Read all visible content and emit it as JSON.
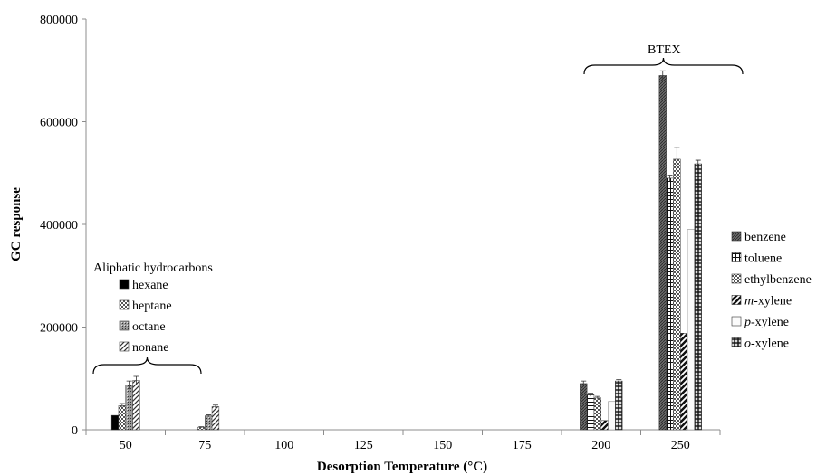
{
  "chart_data": {
    "type": "bar",
    "title": "",
    "xlabel": "Desorption Temperature (°C)",
    "ylabel": "GC response",
    "ylim": [
      0,
      800000
    ],
    "yticks": [
      "0",
      "200000",
      "400000",
      "600000",
      "800000"
    ],
    "categories": [
      "50",
      "75",
      "100",
      "125",
      "150",
      "175",
      "200",
      "250"
    ],
    "groups": [
      {
        "label": "Aliphatic hydrocarbons",
        "series": [
          {
            "name": "hexane",
            "pattern": "solid",
            "values": [
              28000,
              0,
              0,
              0,
              0,
              0,
              0,
              0
            ],
            "errors": [
              0,
              0,
              0,
              0,
              0,
              0,
              0,
              0
            ]
          },
          {
            "name": "heptane",
            "pattern": "checker",
            "values": [
              47000,
              5000,
              0,
              0,
              0,
              0,
              0,
              0
            ],
            "errors": [
              4000,
              1000,
              0,
              0,
              0,
              0,
              0,
              0
            ]
          },
          {
            "name": "octane",
            "pattern": "dots",
            "values": [
              87000,
              27000,
              0,
              0,
              0,
              0,
              0,
              0
            ],
            "errors": [
              8000,
              2000,
              0,
              0,
              0,
              0,
              0,
              0
            ]
          },
          {
            "name": "nonane",
            "pattern": "diag",
            "values": [
              96000,
              45000,
              0,
              0,
              0,
              0,
              0,
              0
            ],
            "errors": [
              8000,
              3000,
              0,
              0,
              0,
              0,
              0,
              0
            ]
          }
        ]
      },
      {
        "label": "BTEX",
        "series": [
          {
            "name": "benzene",
            "pattern": "dense",
            "values": [
              0,
              0,
              0,
              0,
              0,
              0,
              90000,
              690000
            ],
            "errors": [
              0,
              0,
              0,
              0,
              0,
              0,
              5000,
              9000
            ]
          },
          {
            "name": "toluene",
            "pattern": "grid",
            "values": [
              0,
              0,
              0,
              0,
              0,
              0,
              68000,
              490000
            ],
            "errors": [
              0,
              0,
              0,
              0,
              0,
              0,
              3000,
              6000
            ]
          },
          {
            "name": "ethylbenzene",
            "pattern": "checker",
            "values": [
              0,
              0,
              0,
              0,
              0,
              0,
              62000,
              527000
            ],
            "errors": [
              0,
              0,
              0,
              0,
              0,
              0,
              3000,
              23000
            ]
          },
          {
            "name": "m-xylene",
            "italic_prefix": "m",
            "suffix": "-xylene",
            "pattern": "thickdiag",
            "values": [
              0,
              0,
              0,
              0,
              0,
              0,
              18000,
              188000
            ],
            "errors": [
              0,
              0,
              0,
              0,
              0,
              0,
              0,
              0
            ]
          },
          {
            "name": "p-xylene",
            "italic_prefix": "p",
            "suffix": "-xylene",
            "pattern": "light",
            "values": [
              0,
              0,
              0,
              0,
              0,
              0,
              55000,
              390000
            ],
            "errors": [
              0,
              0,
              0,
              0,
              0,
              0,
              0,
              0
            ]
          },
          {
            "name": "o-xylene",
            "italic_prefix": "o",
            "suffix": "-xylene",
            "pattern": "cross",
            "values": [
              0,
              0,
              0,
              0,
              0,
              0,
              95000,
              518000
            ],
            "errors": [
              0,
              0,
              0,
              0,
              0,
              0,
              3000,
              7000
            ]
          }
        ]
      }
    ],
    "grid": false,
    "legend_placement": "right",
    "annotations": [
      "Aliphatic hydrocarbons",
      "BTEX"
    ]
  }
}
